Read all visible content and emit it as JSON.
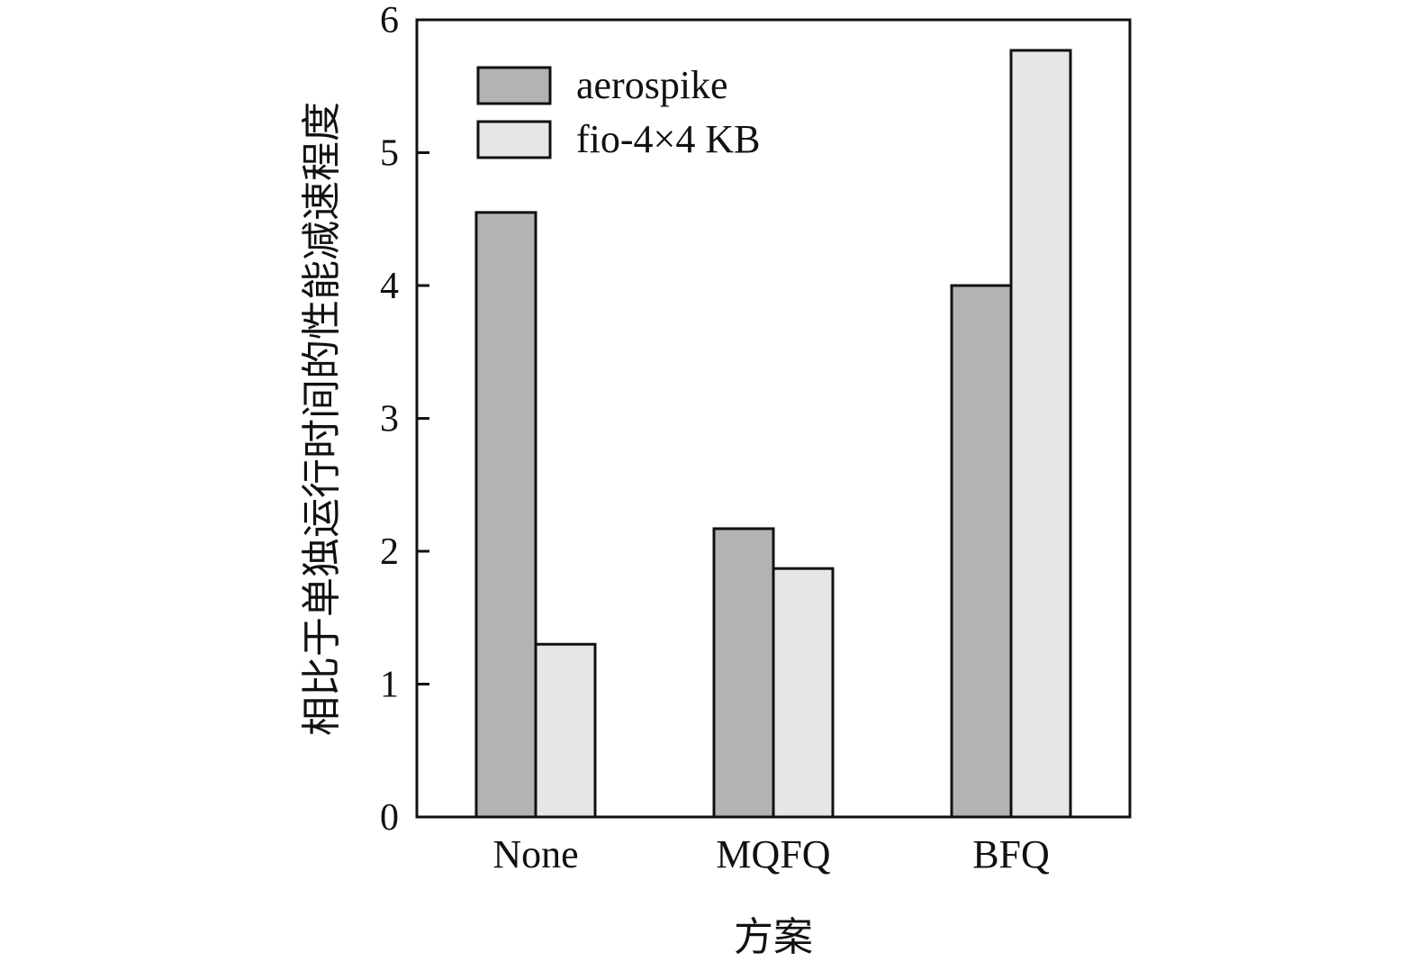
{
  "chart_data": {
    "type": "bar",
    "categories": [
      "None",
      "MQFQ",
      "BFQ"
    ],
    "series": [
      {
        "name": "aerospike",
        "values": [
          4.55,
          2.17,
          4.0
        ],
        "color": "#b3b3b3"
      },
      {
        "name": "fio-4×4 KB",
        "values": [
          1.3,
          1.87,
          5.77
        ],
        "color": "#e6e6e6"
      }
    ],
    "xlabel": "方案",
    "ylabel": "相比于单独运行时间的性能减速程度",
    "ylim": [
      0,
      6
    ],
    "yticks": [
      "0",
      "1",
      "2",
      "3",
      "4",
      "5",
      "6"
    ],
    "grid": false,
    "legend_position": "top-left"
  }
}
